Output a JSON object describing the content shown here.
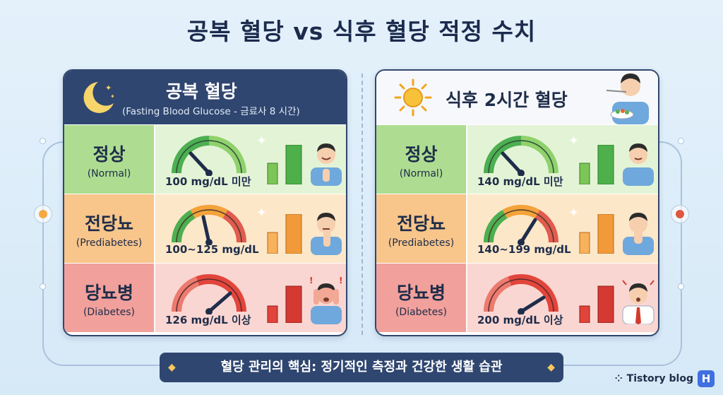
{
  "title": "공복 혈당 vs 식후 혈당 적정 수치",
  "left_panel": {
    "title": "공복 혈당",
    "subtitle": "(Fasting Blood Glucose - 금료사 8 시간)",
    "rows": [
      {
        "ko": "정상",
        "en": "(Normal)",
        "value": "100 mg/dL 미만"
      },
      {
        "ko": "전당뇨",
        "en": "(Prediabetes)",
        "value": "100~125 mg/dL"
      },
      {
        "ko": "당뇨병",
        "en": "(Diabetes)",
        "value": "126 mg/dL 이상"
      }
    ]
  },
  "right_panel": {
    "title": "식후 2시간 혈당",
    "rows": [
      {
        "ko": "정상",
        "en": "(Normal)",
        "value": "140 mg/dL 미만"
      },
      {
        "ko": "전당뇨",
        "en": "(Prediabetes)",
        "value": "140~199 mg/dL"
      },
      {
        "ko": "당뇨병",
        "en": "(Diabetes)",
        "value": "200 mg/dL 이상"
      }
    ]
  },
  "footer": "혈당 관리의 핵심: 정기적인 측정과 건강한 생활 습관",
  "watermark": {
    "text": "Tistory blog",
    "badge": "H"
  },
  "colors": {
    "navy": "#2f4670",
    "normal": "#aedd92",
    "prediabetes": "#f8c58a",
    "diabetes": "#f2a09b"
  }
}
